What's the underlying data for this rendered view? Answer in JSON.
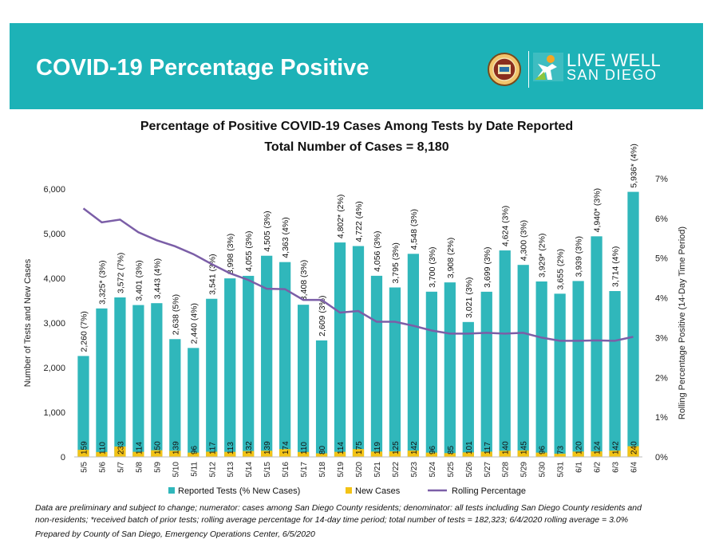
{
  "header": {
    "title": "COVID-19 Percentage Positive",
    "logo_line1": "LIVE WELL",
    "logo_line2": "SAN DIEGO"
  },
  "colors": {
    "banner": "#1db2b7",
    "tests_bar": "#30b7bb",
    "new_cases_bar": "#f3c316",
    "rolling_line": "#7b5ea7"
  },
  "chart_data": {
    "type": "bar",
    "title": "Percentage of Positive COVID-19 Cases Among Tests by Date Reported",
    "subtitle": "Total Number of Cases = 8,180",
    "ylabel": "Number of Tests and New Cases",
    "y2label": "Rolling Percentage Positive (14-Day Time Period)",
    "ylim": [
      0,
      6000
    ],
    "y2lim": [
      0,
      7
    ],
    "yticks": [
      "0",
      "1,000",
      "2,000",
      "3,000",
      "4,000",
      "5,000",
      "6,000"
    ],
    "y2ticks": [
      "0%",
      "1%",
      "2%",
      "3%",
      "4%",
      "5%",
      "6%",
      "7%"
    ],
    "categories": [
      "5/5",
      "5/6",
      "5/7",
      "5/8",
      "5/9",
      "5/10",
      "5/11",
      "5/12",
      "5/13",
      "5/14",
      "5/15",
      "5/16",
      "5/17",
      "5/18",
      "5/19",
      "5/20",
      "5/21",
      "5/22",
      "5/23",
      "5/24",
      "5/25",
      "5/26",
      "5/27",
      "5/28",
      "5/29",
      "5/30",
      "5/31",
      "6/1",
      "6/2",
      "6/3",
      "6/4"
    ],
    "series": [
      {
        "name": "Reported Tests (% New Cases)",
        "values": [
          2260,
          3325,
          3572,
          3401,
          3443,
          2638,
          2440,
          3541,
          3998,
          4055,
          4505,
          4363,
          3408,
          2609,
          4802,
          4722,
          4056,
          3795,
          4548,
          3700,
          3908,
          3021,
          3699,
          4624,
          4300,
          3929,
          3655,
          3939,
          4940,
          3714,
          5936
        ],
        "labels": [
          "2,260 (7%)",
          "3,325* (3%)",
          "3,572 (7%)",
          "3,401 (3%)",
          "3,443 (4%)",
          "2,638 (5%)",
          "2,440 (4%)",
          "3,541 (3%)",
          "3,998 (3%)",
          "4,055 (3%)",
          "4,505 (3%)",
          "4,363 (4%)",
          "3,408 (3%)",
          "2,609 (3%)",
          "4,802* (2%)",
          "4,722 (4%)",
          "4,056 (3%)",
          "3,795 (3%)",
          "4,548 (3%)",
          "3,700 (3%)",
          "3,908 (2%)",
          "3,021 (3%)",
          "3,699 (3%)",
          "4,624 (3%)",
          "4,300 (3%)",
          "3,929* (2%)",
          "3,655 (2%)",
          "3,939 (3%)",
          "4,940* (3%)",
          "3,714 (4%)",
          "5,936* (4%)"
        ]
      },
      {
        "name": "New Cases",
        "values": [
          159,
          110,
          233,
          114,
          150,
          139,
          96,
          117,
          113,
          132,
          139,
          174,
          110,
          80,
          114,
          175,
          119,
          125,
          142,
          96,
          85,
          101,
          117,
          140,
          145,
          96,
          73,
          120,
          124,
          142,
          240
        ]
      },
      {
        "name": "Rolling Percentage",
        "axis": "right",
        "values": [
          6.25,
          5.9,
          5.97,
          5.65,
          5.45,
          5.3,
          5.1,
          4.85,
          4.62,
          4.45,
          4.23,
          4.22,
          3.95,
          3.95,
          3.63,
          3.67,
          3.4,
          3.4,
          3.3,
          3.18,
          3.1,
          3.1,
          3.12,
          3.1,
          3.12,
          3.0,
          2.92,
          2.92,
          2.93,
          2.92,
          3.02
        ]
      }
    ],
    "legend_position": "bottom"
  },
  "footnotes": {
    "line1": "Data are preliminary and subject to change; numerator: cases among San Diego County residents; denominator: all tests including San Diego County residents and",
    "line2": "non-residents; *received batch of prior tests; rolling average percentage for 14-day time period; total number of tests = 182,323; 6/4/2020 rolling average = 3.0%",
    "line3": "Prepared by County of San Diego, Emergency Operations Center, 6/5/2020"
  }
}
